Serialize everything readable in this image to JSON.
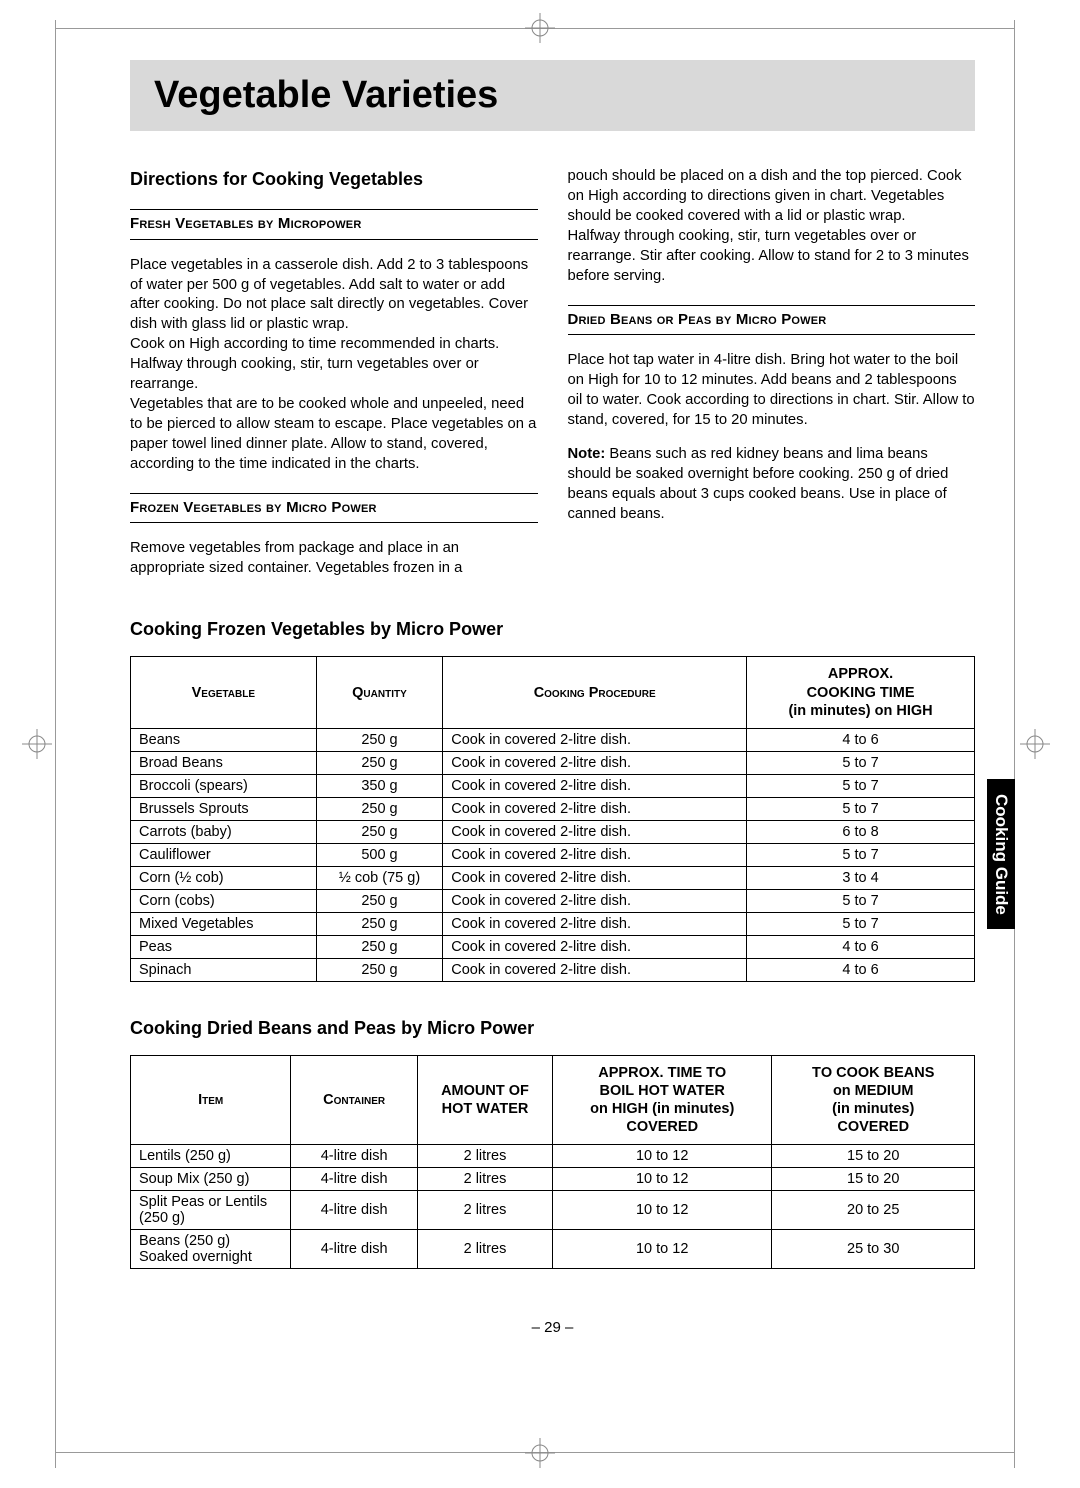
{
  "title": "Vegetable Varieties",
  "side_tab": "Cooking Guide",
  "page_number": "– 29 –",
  "left_col": {
    "heading": "Directions for Cooking Vegetables",
    "sub1_title": "Fresh Vegetables by Micropower",
    "sub1_p1": "Place vegetables in a casserole dish. Add 2 to 3 tablespoons of water per 500 g of vegetables. Add salt to water or add after cooking. Do not place salt directly on vegetables. Cover dish with glass lid or plastic wrap.",
    "sub1_p2": "Cook on High according to time recommended in charts. Halfway through cooking, stir, turn vegetables over or rearrange.",
    "sub1_p3": "Vegetables that are to be cooked whole and unpeeled, need to be pierced to allow steam to escape. Place vegetables on a paper towel lined dinner plate. Allow to stand, covered, according to the time indicated in the charts.",
    "sub2_title": "Frozen Vegetables by Micro Power",
    "sub2_p1": "Remove vegetables from package and place in an appropriate sized container. Vegetables frozen in a"
  },
  "right_col": {
    "top_p1": "pouch should be placed on a dish and the top pierced. Cook on High according to directions given in chart. Vegetables should be cooked covered with a lid or plastic wrap.",
    "top_p2": "Halfway through cooking, stir, turn vegetables over or rearrange. Stir after cooking. Allow to stand for 2 to 3 minutes before serving.",
    "sub3_title": "Dried Beans or Peas by Micro Power",
    "sub3_p1": "Place hot tap water in 4-litre dish. Bring hot water to the boil on High for 10 to 12 minutes. Add beans and 2 tablespoons oil to water. Cook according to directions in chart. Stir. Allow to stand, covered, for 15 to 20 minutes.",
    "note_label": "Note:",
    "note_text": " Beans such as red kidney beans and lima beans should be soaked overnight before cooking. 250 g of dried beans equals about 3 cups cooked beans. Use in place of canned beans."
  },
  "table1": {
    "title": "Cooking Frozen Vegetables by Micro Power",
    "headers": [
      "Vegetable",
      "Quantity",
      "Cooking Procedure",
      "Approx. Cooking Time (in minutes) on HIGH"
    ],
    "rows": [
      [
        "Beans",
        "250 g",
        "Cook in covered 2-litre dish.",
        "4 to 6"
      ],
      [
        "Broad Beans",
        "250 g",
        "Cook in covered 2-litre dish.",
        "5 to 7"
      ],
      [
        "Broccoli (spears)",
        "350 g",
        "Cook in covered 2-litre dish.",
        "5 to 7"
      ],
      [
        "Brussels Sprouts",
        "250 g",
        "Cook in covered 2-litre dish.",
        "5 to 7"
      ],
      [
        "Carrots (baby)",
        "250 g",
        "Cook in covered 2-litre dish.",
        "6 to 8"
      ],
      [
        "Cauliflower",
        "500 g",
        "Cook in covered 2-litre dish.",
        "5 to 7"
      ],
      [
        "Corn (½ cob)",
        "½ cob (75 g)",
        "Cook in covered 2-litre dish.",
        "3 to 4"
      ],
      [
        "Corn (cobs)",
        "250 g",
        "Cook in covered 2-litre dish.",
        "5 to 7"
      ],
      [
        "Mixed Vegetables",
        "250 g",
        "Cook in covered 2-litre dish.",
        "5 to 7"
      ],
      [
        "Peas",
        "250 g",
        "Cook in covered 2-litre dish.",
        "4 to 6"
      ],
      [
        "Spinach",
        "250 g",
        "Cook in covered 2-litre dish.",
        "4 to 6"
      ]
    ]
  },
  "table2": {
    "title": "Cooking Dried Beans and Peas by Micro Power",
    "headers": [
      "Item",
      "Container",
      "Amount of Hot Water",
      "Approx. Time to Boil Hot Water on HIGH (in minutes) Covered",
      "To Cook Beans on MEDIUM (in minutes) Covered"
    ],
    "rows": [
      [
        "Lentils (250 g)",
        "4-litre dish",
        "2 litres",
        "10 to 12",
        "15 to 20"
      ],
      [
        "Soup Mix (250 g)",
        "4-litre dish",
        "2 litres",
        "10 to 12",
        "15 to 20"
      ],
      [
        "Split Peas or Lentils (250 g)",
        "4-litre dish",
        "2 litres",
        "10 to 12",
        "20 to 25"
      ],
      [
        "Beans (250 g) Soaked overnight",
        "4-litre dish",
        "2 litres",
        "10 to 12",
        "25 to 30"
      ]
    ]
  }
}
